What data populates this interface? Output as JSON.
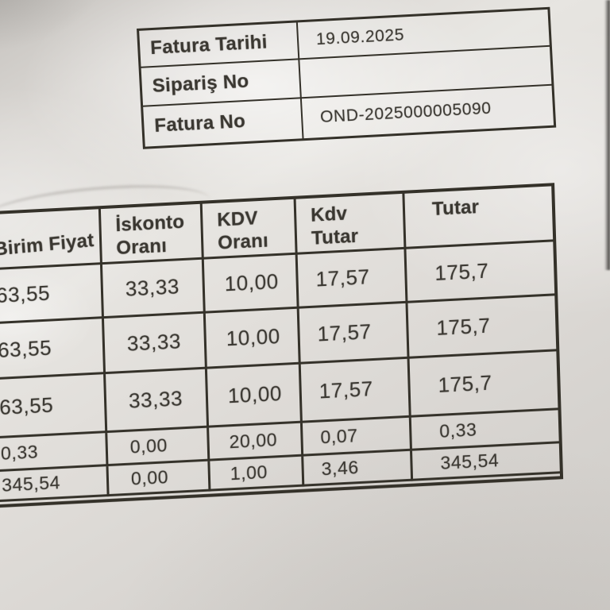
{
  "info_table": {
    "rows": [
      {
        "label": "Fatura Tarihi",
        "value": "19.09.2025"
      },
      {
        "label": "Sipariş No",
        "value": ""
      },
      {
        "label": "Fatura No",
        "value": "OND-2025000005090"
      }
    ]
  },
  "items_table": {
    "columns": [
      "Birim Fiyat",
      "İskonto Oranı",
      "KDV Oranı",
      "Kdv Tutar",
      "Tutar"
    ],
    "rows": [
      [
        "63,55",
        "33,33",
        "10,00",
        "17,57",
        "175,7"
      ],
      [
        "63,55",
        "33,33",
        "10,00",
        "17,57",
        "175,7"
      ],
      [
        "63,55",
        "33,33",
        "10,00",
        "17,57",
        "175,7"
      ],
      [
        "0,33",
        "0,00",
        "20,00",
        "0,07",
        "0,33"
      ],
      [
        "345,54",
        "0,00",
        "1,00",
        "3,46",
        "345,54"
      ]
    ]
  },
  "colors": {
    "paper_highlight": "#efede9",
    "paper_base": "#d8d5d1",
    "paper_shadow": "#c6c3bf",
    "ink": "#3a3731",
    "table_line": "#343129",
    "photo_edge_dark": "#1a1816"
  }
}
